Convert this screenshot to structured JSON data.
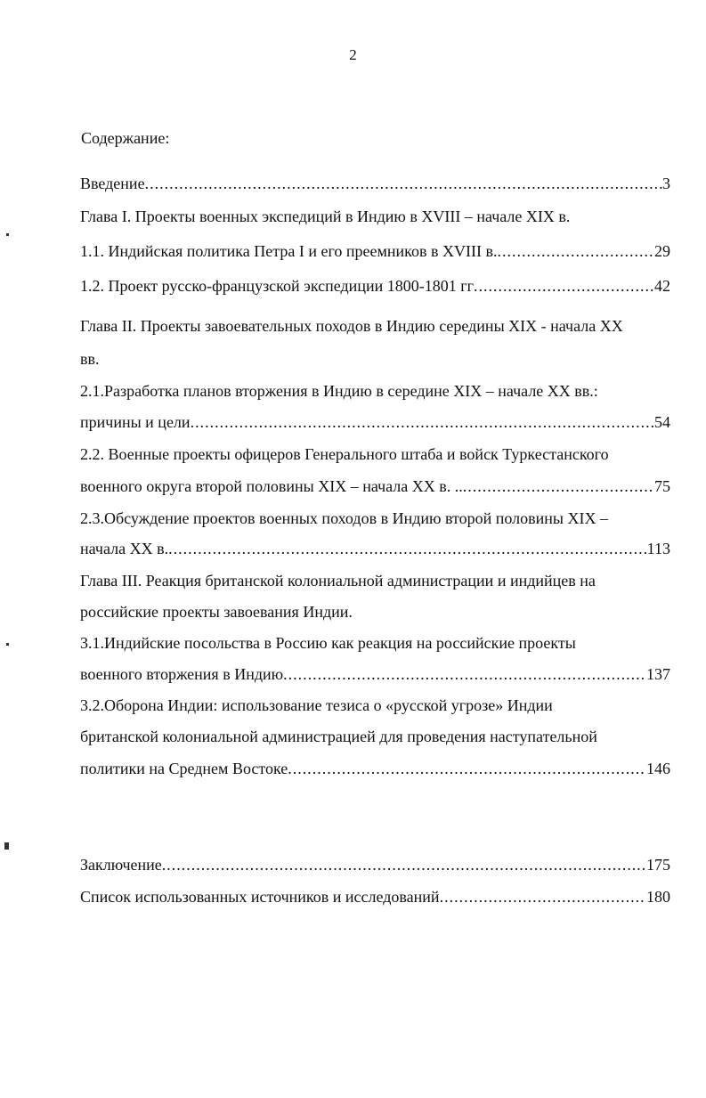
{
  "page_number": "2",
  "heading": "Содержание:",
  "lines": [
    {
      "text": "Введение",
      "page": "3"
    },
    {
      "text": "Глава I. Проекты военных экспедиций в Индию в XVIII – начале XIX в."
    },
    {
      "text": "1.1. Индийская политика Петра I и его преемников в XVIII в. ",
      "page": "29"
    },
    {
      "text": "1.2. Проект русско-французской экспедиции 1800-1801 гг",
      "page": "42"
    },
    {
      "text": "Глава II. Проекты завоевательных походов в  Индию середины XIX - начала XX"
    },
    {
      "text": "вв."
    },
    {
      "text": "2.1.Разработка планов вторжения в Индию в середине XIX – начале XX вв.:"
    },
    {
      "text": "причины и цели",
      "page": "54"
    },
    {
      "text": "2.2. Военные  проекты офицеров Генерального штаба и войск Туркестанского"
    },
    {
      "text": "военного округа второй половины XIX – начала XX в. .. ",
      "page": "75"
    },
    {
      "text": "2.3.Обсуждение проектов военных походов в Индию второй половины XIX –"
    },
    {
      "text": "начала XX в. ",
      "page": "113"
    },
    {
      "text": "Глава III. Реакция британской колониальной администрации и индийцев на"
    },
    {
      "text": "российские проекты завоевания Индии."
    },
    {
      "text": "3.1.Индийские посольства в Россию как реакция на российские проекты"
    },
    {
      "text": "военного вторжения в Индию",
      "page": "137"
    },
    {
      "text": "3.2.Оборона Индии: использование тезиса о «русской угрозе» Индии"
    },
    {
      "text": "британской колониальной администрацией для проведения наступательной"
    },
    {
      "text": "политики на Среднем Востоке",
      "page": "146"
    },
    {
      "text": "Заключение",
      "page": "175"
    },
    {
      "text": "Список использованных источников и исследований",
      "page": "180"
    }
  ]
}
